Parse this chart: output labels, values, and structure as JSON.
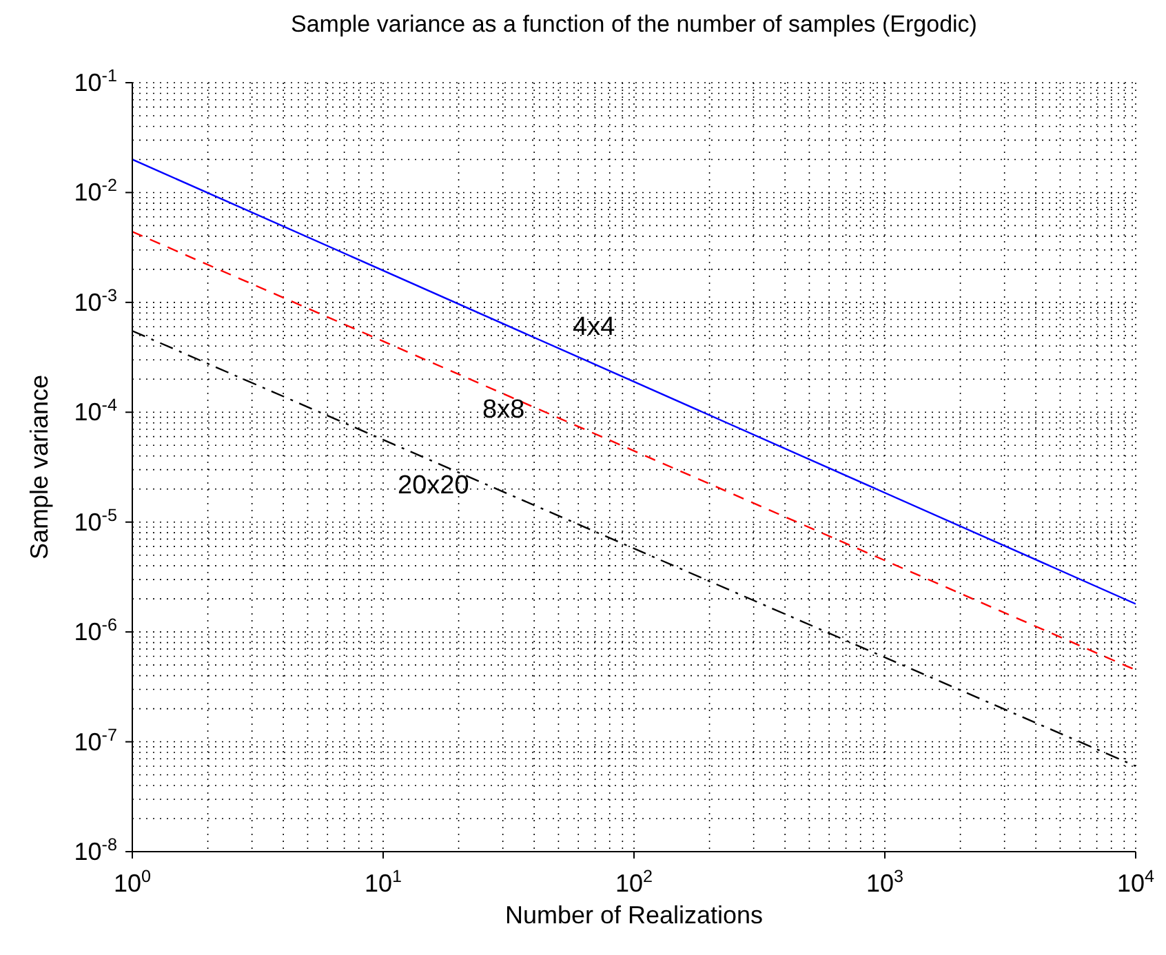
{
  "chart_data": {
    "type": "line",
    "title": "Sample variance as a function of the number of samples (Ergodic)",
    "xlabel": "Number of Realizations",
    "ylabel": "Sample variance",
    "log": "xy",
    "grid": true,
    "legend": false,
    "marker": "none",
    "x": [
      1,
      10000
    ],
    "xlim": [
      1,
      10000
    ],
    "xticks": [
      {
        "value": 1,
        "label": "10$^{0}$"
      },
      {
        "value": 10,
        "label": "10$^{1}$"
      },
      {
        "value": 100,
        "label": "10$^{2}$"
      },
      {
        "value": 1000,
        "label": "10$^{3}$"
      },
      {
        "value": 10000,
        "label": "10$^{4}$"
      }
    ],
    "ylim": [
      1e-08,
      0.1
    ],
    "yticks": [
      {
        "value": 1e-08,
        "label": "10$^{-8}$"
      },
      {
        "value": 1e-07,
        "label": "10$^{-7}$"
      },
      {
        "value": 1e-06,
        "label": "10$^{-6}$"
      },
      {
        "value": 1e-05,
        "label": "10$^{-5}$"
      },
      {
        "value": 0.0001,
        "label": "10$^{-4}$"
      },
      {
        "value": 0.001,
        "label": "10$^{-3}$"
      },
      {
        "value": 0.01,
        "label": "10$^{-2}$"
      },
      {
        "value": 0.1,
        "label": "10$^{-1}$"
      }
    ],
    "series": [
      {
        "name": "4x4",
        "color": "#0000ff",
        "line_style": "solid",
        "values": [
          0.02,
          1.8e-06
        ]
      },
      {
        "name": "8x8",
        "color": "#ff0000",
        "line_style": "dashed",
        "values": [
          0.0044,
          4.5e-07
        ]
      },
      {
        "name": "20x20",
        "color": "#000000",
        "line_style": "dashdot",
        "values": [
          0.00055,
          6e-08
        ]
      }
    ]
  }
}
